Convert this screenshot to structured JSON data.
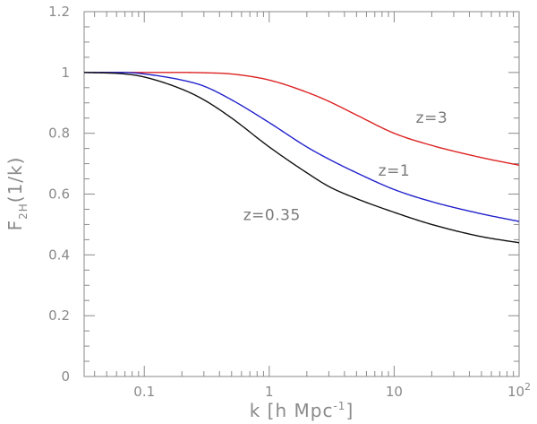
{
  "chart_data": {
    "type": "line",
    "xlabel": "k [h Mpc",
    "xlabel_sup": "-1",
    "xlabel_close": "]",
    "ylabel": "F",
    "ylabel_sub": "2H",
    "ylabel_tail": "(1/k)",
    "xscale": "log",
    "xlim": [
      0.033,
      100
    ],
    "ylim": [
      0,
      1.2
    ],
    "grid": false,
    "x_tick_labels": [
      {
        "value": 0.1,
        "base": "0.1",
        "sup": ""
      },
      {
        "value": 1,
        "base": "1",
        "sup": ""
      },
      {
        "value": 10,
        "base": "10",
        "sup": ""
      },
      {
        "value": 100,
        "base": "10",
        "sup": "2"
      }
    ],
    "y_ticks": [
      0,
      0.2,
      0.4,
      0.6,
      0.8,
      1,
      1.2
    ],
    "y_tick_labels": [
      "0",
      "0.2",
      "0.4",
      "0.6",
      "0.8",
      "1",
      "1.2"
    ],
    "series": [
      {
        "name": "z=3",
        "color": "#dd2222",
        "x": [
          0.033,
          0.1,
          0.2,
          0.3,
          0.5,
          1,
          2,
          3,
          5,
          10,
          20,
          50,
          100
        ],
        "y": [
          1.0,
          1.0,
          1.0,
          0.999,
          0.995,
          0.975,
          0.935,
          0.905,
          0.86,
          0.8,
          0.76,
          0.72,
          0.695
        ]
      },
      {
        "name": "z=1",
        "color": "#2222cc",
        "x": [
          0.033,
          0.07,
          0.1,
          0.2,
          0.3,
          0.5,
          1,
          2,
          3,
          5,
          10,
          20,
          50,
          100
        ],
        "y": [
          1.0,
          1.0,
          0.995,
          0.975,
          0.955,
          0.91,
          0.835,
          0.755,
          0.715,
          0.67,
          0.615,
          0.575,
          0.535,
          0.51
        ]
      },
      {
        "name": "z=0.35",
        "color": "#111111",
        "x": [
          0.033,
          0.07,
          0.1,
          0.2,
          0.3,
          0.5,
          1,
          2,
          3,
          5,
          10,
          20,
          50,
          100
        ],
        "y": [
          1.0,
          0.995,
          0.985,
          0.945,
          0.91,
          0.85,
          0.755,
          0.67,
          0.625,
          0.585,
          0.54,
          0.5,
          0.46,
          0.44
        ]
      }
    ],
    "annotations": [
      {
        "text": "z=3",
        "x": 20,
        "y": 0.835
      },
      {
        "text": "z=1",
        "x": 10,
        "y": 0.66
      },
      {
        "text": "z=0.35",
        "x": 1.05,
        "y": 0.515
      }
    ]
  }
}
